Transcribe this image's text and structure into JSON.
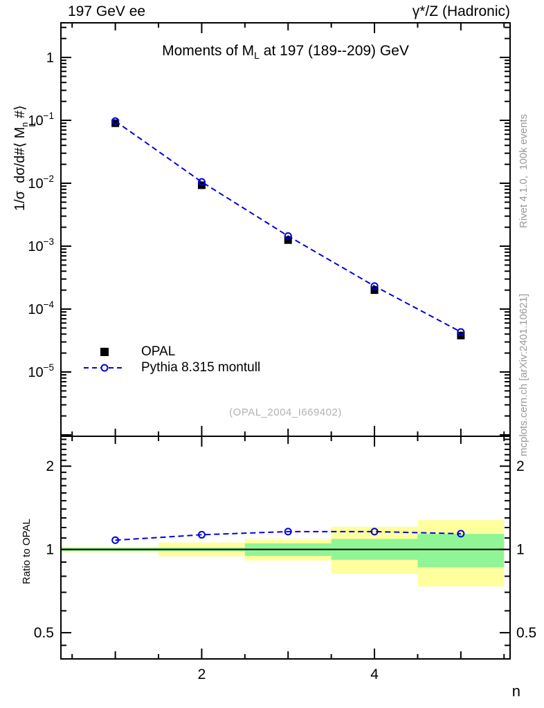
{
  "header": {
    "left": "197 GeV ee",
    "right": "γ*/Z (Hadronic)"
  },
  "title": {
    "pre": "Moments of M",
    "sub": "L",
    "post": " at 197 (189--209) GeV"
  },
  "main_ylabel": {
    "pre": "1/σ  dσ/d#⟨ M",
    "sup": "n",
    "sub": "L",
    "post": " #⟩"
  },
  "legend": {
    "items": [
      {
        "label": "OPAL",
        "marker": "filled-square"
      },
      {
        "label": "Pythia 8.315 montull",
        "marker": "dashed-open-circle"
      }
    ]
  },
  "watermark": {
    "text": "(OPAL_2004_I669402)"
  },
  "side_notes": {
    "top": "Rivet 4.1.0,  100k events",
    "bottom": "mcplots.cern.ch [arXiv:2401.10621]"
  },
  "colors": {
    "black": "#000000",
    "accent_blue": "#0000dd",
    "band_yellow": "#ffff9e",
    "band_green": "#90f594",
    "gray_note": "#999999",
    "watermark_gray": "#b2b2b2"
  },
  "chart_data": {
    "type": "scatter",
    "title": "Moments of M_L at 197 (189--209) GeV",
    "xlabel": "n",
    "x": [
      1,
      2,
      3,
      4,
      5
    ],
    "xlim": [
      0.37,
      5.57
    ],
    "x_minor_tick_step": 0.5,
    "x_labeled_ticks": [
      {
        "value": 2,
        "label": "2"
      },
      {
        "value": 4,
        "label": "4"
      }
    ],
    "main_panel": {
      "ylog": true,
      "ylim": [
        9.5e-07,
        3.55
      ],
      "ylabel": "1/σ dσ/d#⟨ M_L^n #⟩",
      "y_labeled_ticks": [
        {
          "value": 1,
          "base": "1",
          "exp": ""
        },
        {
          "value": 0.1,
          "base": "10",
          "exp": "−1"
        },
        {
          "value": 0.01,
          "base": "10",
          "exp": "−2"
        },
        {
          "value": 0.001,
          "base": "10",
          "exp": "−3"
        },
        {
          "value": 0.0001,
          "base": "10",
          "exp": "−4"
        },
        {
          "value": 1e-05,
          "base": "10",
          "exp": "−5"
        }
      ],
      "series": [
        {
          "name": "OPAL",
          "marker": "filled-square",
          "color": "#000000",
          "values": [
            0.09,
            0.0093,
            0.00125,
            0.0002,
            3.8e-05
          ]
        },
        {
          "name": "Pythia 8.315 montull",
          "marker": "open-circle",
          "line_style": "dashed",
          "color": "#0000dd",
          "values": [
            0.0972,
            0.0105,
            0.00145,
            0.000232,
            4.33e-05
          ]
        }
      ]
    },
    "ratio_panel": {
      "ylabel": "Ratio to OPAL",
      "ylog": true,
      "ylim": [
        0.402,
        2.565
      ],
      "reference_line": 1,
      "y_labeled_ticks": [
        {
          "value": 2,
          "label": "2"
        },
        {
          "value": 1,
          "label": "1"
        },
        {
          "value": 0.5,
          "label": "0.5"
        }
      ],
      "y_minor_ticks": [
        0.45,
        0.6,
        0.7,
        0.8,
        0.9,
        1.1,
        1.2,
        1.3,
        1.4,
        1.5,
        1.6,
        1.7,
        1.8,
        1.9,
        2.1,
        2.2,
        2.3,
        2.4,
        2.5
      ],
      "ratio_series": {
        "name": "Pythia 8.315 montull",
        "values": [
          1.08,
          1.13,
          1.16,
          1.16,
          1.14
        ]
      },
      "bands": [
        {
          "x_range": [
            0.37,
            1.5
          ],
          "yellow": [
            0.977,
            1.023
          ],
          "green": [
            0.987,
            1.013
          ]
        },
        {
          "x_range": [
            1.5,
            2.5
          ],
          "yellow": [
            0.944,
            1.059
          ],
          "green": [
            0.985,
            1.015
          ]
        },
        {
          "x_range": [
            2.5,
            3.5
          ],
          "yellow": [
            0.912,
            1.091
          ],
          "green": [
            0.948,
            1.052
          ]
        },
        {
          "x_range": [
            3.5,
            4.5
          ],
          "yellow": [
            0.817,
            1.208
          ],
          "green": [
            0.917,
            1.091
          ]
        },
        {
          "x_range": [
            4.5,
            5.5
          ],
          "yellow": [
            0.735,
            1.277
          ],
          "green": [
            0.862,
            1.138
          ]
        }
      ]
    }
  }
}
